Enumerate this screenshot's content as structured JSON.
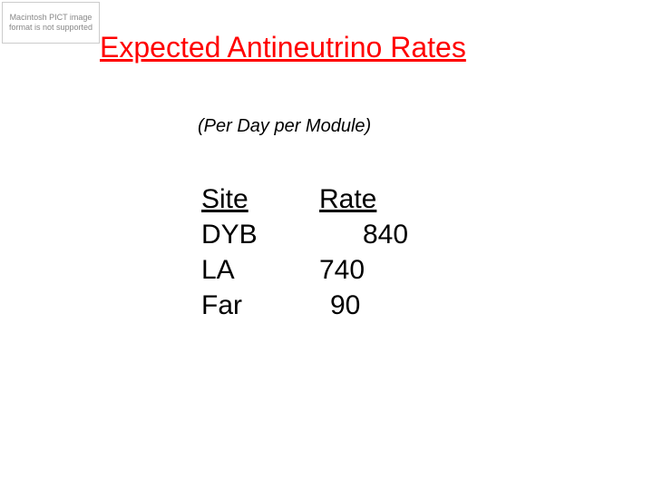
{
  "placeholder": {
    "text": "Macintosh PICT image format is not supported"
  },
  "title": "Expected Antineutrino Rates",
  "subtitle": "(Per Day per Module)",
  "table": {
    "columns": [
      "Site",
      "Rate"
    ],
    "rows": [
      {
        "site": "DYB",
        "rate": "840"
      },
      {
        "site": "LA",
        "rate": "740"
      },
      {
        "site": "Far",
        "rate": "90"
      }
    ]
  },
  "style": {
    "title_color": "#ff0000",
    "title_fontsize": 32,
    "subtitle_fontsize": 20,
    "table_fontsize": 30,
    "background_color": "#ffffff",
    "text_color": "#000000"
  }
}
